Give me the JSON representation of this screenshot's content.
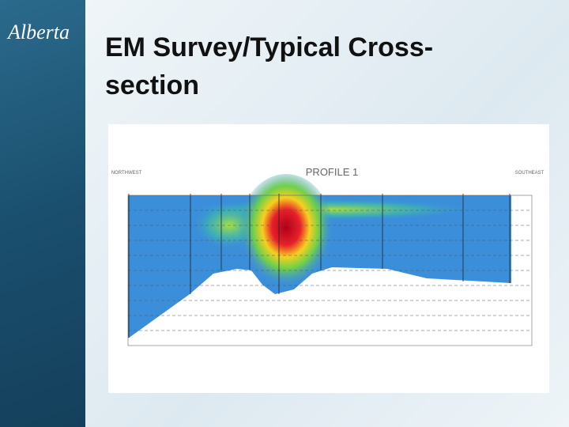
{
  "logo": "Alberta",
  "title": "EM Survey/Typical Cross-section",
  "figure": {
    "title": "PROFILE 1",
    "left_label": "NORTHWEST",
    "right_label": "SOUTHEAST"
  }
}
